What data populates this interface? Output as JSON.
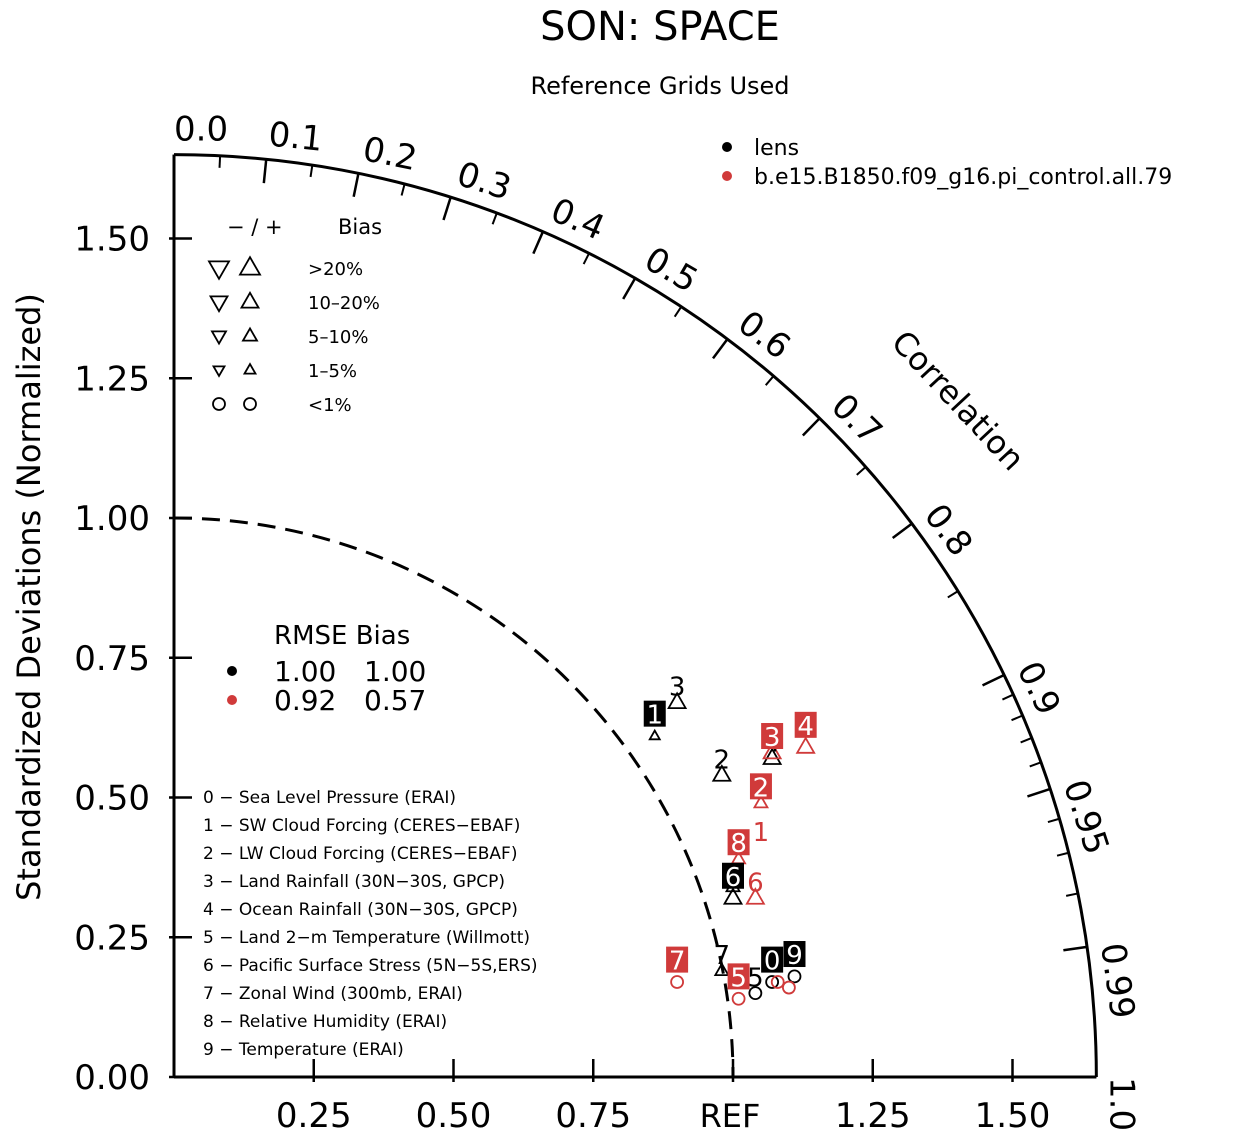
{
  "chart_data": {
    "type": "taylor",
    "title": "SON: SPACE",
    "subtitle": "Reference Grids Used",
    "ylabel": "Standardized Deviations (Normalized)",
    "correlation_label": "Correlation",
    "ref_label": "REF",
    "std_range": [
      0,
      1.65
    ],
    "y_ticks": [
      "0.00",
      "0.25",
      "0.50",
      "0.75",
      "1.00",
      "1.25",
      "1.50"
    ],
    "x_ticks": [
      "0.25",
      "0.50",
      "0.75",
      "1.25",
      "1.50"
    ],
    "correlation_ticks": [
      "0.0",
      "0.1",
      "0.2",
      "0.3",
      "0.4",
      "0.5",
      "0.6",
      "0.7",
      "0.8",
      "0.9",
      "0.95",
      "0.99",
      "1.0"
    ],
    "reference_std": 1.0,
    "series": [
      {
        "name": "lens",
        "color": "#000000",
        "rmse": "1.00",
        "bias": "1.00"
      },
      {
        "name": "b.e15.B1850.f09_g16.pi_control.all.79",
        "color": "#d03a3a",
        "rmse": "0.92",
        "bias": "0.57"
      }
    ],
    "rmse_header": "RMSE Bias",
    "bias_legend": {
      "header_sign": "− / +",
      "header_label": "Bias",
      "rows": [
        ">20%",
        "10–20%",
        "5–10%",
        "1–5%",
        "<1%"
      ]
    },
    "variables": [
      "0 − Sea Level Pressure (ERAI)",
      "1 − SW Cloud Forcing (CERES−EBAF)",
      "2 − LW Cloud Forcing (CERES−EBAF)",
      "3 − Land Rainfall (30N−30S, GPCP)",
      "4 − Ocean Rainfall (30N−30S, GPCP)",
      "5 − Land 2−m Temperature (Willmott)",
      "6 − Pacific Surface Stress (5N−5S,ERS)",
      "7 − Zonal Wind (300mb, ERAI)",
      "8 − Relative Humidity (ERAI)",
      "9 − Temperature (ERAI)"
    ],
    "points": [
      {
        "series": 0,
        "label": "0",
        "x": 1.07,
        "y": 0.17,
        "marker": "circle"
      },
      {
        "series": 0,
        "label": "1",
        "x": 0.86,
        "y": 0.61,
        "marker": "up",
        "size": 1
      },
      {
        "series": 0,
        "label": "2",
        "x": 0.98,
        "y": 0.54,
        "marker": "up",
        "size": 3
      },
      {
        "series": 0,
        "label": "3",
        "x": 0.9,
        "y": 0.67,
        "marker": "up",
        "size": 3
      },
      {
        "series": 0,
        "label": "4",
        "x": 1.07,
        "y": 0.57,
        "marker": "up",
        "size": 3
      },
      {
        "series": 0,
        "label": "5",
        "x": 1.04,
        "y": 0.15,
        "marker": "circle"
      },
      {
        "series": 0,
        "label": "6",
        "x": 1.0,
        "y": 0.32,
        "marker": "up",
        "size": 3
      },
      {
        "series": 0,
        "label": "7",
        "x": 0.98,
        "y": 0.19,
        "marker": "up",
        "size": 2
      },
      {
        "series": 0,
        "label": "8",
        "x": 1.0,
        "y": 0.34,
        "marker": "up",
        "size": 2
      },
      {
        "series": 0,
        "label": "9",
        "x": 1.11,
        "y": 0.18,
        "marker": "circle"
      },
      {
        "series": 1,
        "label": "0",
        "x": 1.08,
        "y": 0.17,
        "marker": "circle"
      },
      {
        "series": 1,
        "label": "1",
        "x": 1.05,
        "y": 0.49,
        "marker": "up",
        "size": 2
      },
      {
        "series": 1,
        "label": "2",
        "x": 1.05,
        "y": 0.52,
        "marker": "up",
        "size": 3
      },
      {
        "series": 1,
        "label": "3",
        "x": 1.07,
        "y": 0.58,
        "marker": "up",
        "size": 3
      },
      {
        "series": 1,
        "label": "4",
        "x": 1.13,
        "y": 0.59,
        "marker": "up",
        "size": 3
      },
      {
        "series": 1,
        "label": "5",
        "x": 1.01,
        "y": 0.14,
        "marker": "circle"
      },
      {
        "series": 1,
        "label": "6",
        "x": 1.04,
        "y": 0.32,
        "marker": "up",
        "size": 3
      },
      {
        "series": 1,
        "label": "7",
        "x": 0.9,
        "y": 0.17,
        "marker": "circle"
      },
      {
        "series": 1,
        "label": "8",
        "x": 1.01,
        "y": 0.39,
        "marker": "up",
        "size": 2
      },
      {
        "series": 1,
        "label": "9",
        "x": 1.1,
        "y": 0.16,
        "marker": "circle"
      }
    ],
    "point_labels": [
      {
        "series": 0,
        "label": "0",
        "x": 1.07,
        "y": 0.21,
        "style": "box"
      },
      {
        "series": 0,
        "label": "1",
        "x": 0.86,
        "y": 0.65,
        "style": "box"
      },
      {
        "series": 0,
        "label": "2",
        "x": 0.98,
        "y": 0.57,
        "style": "plain"
      },
      {
        "series": 0,
        "label": "3",
        "x": 0.9,
        "y": 0.7,
        "style": "plain"
      },
      {
        "series": 0,
        "label": "4",
        "x": 1.07,
        "y": 0.6,
        "style": "plain"
      },
      {
        "series": 0,
        "label": "5",
        "x": 1.04,
        "y": 0.18,
        "style": "plain"
      },
      {
        "series": 0,
        "label": "6",
        "x": 1.0,
        "y": 0.36,
        "style": "box"
      },
      {
        "series": 0,
        "label": "7",
        "x": 0.98,
        "y": 0.22,
        "style": "plain"
      },
      {
        "series": 0,
        "label": "9",
        "x": 1.11,
        "y": 0.22,
        "style": "box"
      },
      {
        "series": 1,
        "label": "1",
        "x": 1.05,
        "y": 0.44,
        "style": "plain"
      },
      {
        "series": 1,
        "label": "2",
        "x": 1.05,
        "y": 0.52,
        "style": "box"
      },
      {
        "series": 1,
        "label": "4",
        "x": 1.13,
        "y": 0.63,
        "style": "box"
      },
      {
        "series": 1,
        "label": "5",
        "x": 1.01,
        "y": 0.18,
        "style": "box"
      },
      {
        "series": 1,
        "label": "6",
        "x": 1.04,
        "y": 0.35,
        "style": "plain"
      },
      {
        "series": 1,
        "label": "7",
        "x": 0.9,
        "y": 0.21,
        "style": "box"
      },
      {
        "series": 1,
        "label": "8",
        "x": 1.01,
        "y": 0.42,
        "style": "box"
      },
      {
        "series": 1,
        "label": "3",
        "x": 1.07,
        "y": 0.61,
        "style": "box"
      }
    ]
  }
}
